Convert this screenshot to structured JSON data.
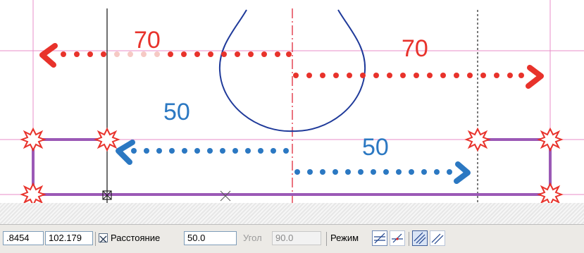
{
  "drawing": {
    "dimensions": {
      "top_left": "70",
      "top_right": "70",
      "middle_left": "50",
      "middle_right": "50"
    },
    "colors": {
      "red_arrow": "#e8322b",
      "blue_arrow": "#2b78c2",
      "construction_line": "#e98ec9",
      "axis_line": "#e0283a",
      "outline": "#9b59b6",
      "curve": "#1f3a9a"
    }
  },
  "statusbar": {
    "coord_x": ".8454",
    "coord_y": "102.179",
    "distance_label": "Расстояние",
    "distance_value": "50.0",
    "angle_label": "Угол",
    "angle_value": "90.0",
    "mode_label": "Режим"
  }
}
